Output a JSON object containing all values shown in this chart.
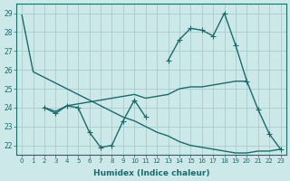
{
  "xlabel": "Humidex (Indice chaleur)",
  "background_color": "#cde8e8",
  "grid_color": "#a0c8c8",
  "line_color": "#1a6b6b",
  "xlim": [
    -0.5,
    23.5
  ],
  "ylim": [
    21.5,
    29.5
  ],
  "yticks": [
    22,
    23,
    24,
    25,
    26,
    27,
    28,
    29
  ],
  "xticks": [
    0,
    1,
    2,
    3,
    4,
    5,
    6,
    7,
    8,
    9,
    10,
    11,
    12,
    13,
    14,
    15,
    16,
    17,
    18,
    19,
    20,
    21,
    22,
    23
  ],
  "lineA_x": [
    0,
    1,
    2,
    3,
    4,
    5,
    6,
    7,
    8,
    9,
    10,
    11,
    12,
    13,
    14,
    15,
    16,
    17,
    18,
    19,
    20,
    21,
    22,
    23
  ],
  "lineA_y": [
    28.9,
    25.9,
    25.6,
    25.3,
    25.0,
    24.7,
    24.4,
    24.1,
    23.8,
    23.5,
    23.3,
    23.0,
    22.7,
    22.5,
    22.2,
    22.0,
    21.9,
    21.8,
    21.7,
    21.6,
    21.6,
    21.7,
    21.7,
    21.8
  ],
  "lineB_x": [
    2,
    3,
    4,
    10,
    11,
    12,
    13,
    14,
    15,
    16,
    17,
    18,
    19,
    20
  ],
  "lineB_y": [
    24.0,
    23.8,
    24.1,
    24.7,
    24.5,
    24.6,
    24.7,
    25.0,
    25.1,
    25.1,
    25.2,
    25.3,
    25.4,
    25.4
  ],
  "lineC_x": [
    2,
    3,
    4,
    5,
    6,
    7,
    8,
    9,
    10,
    11
  ],
  "lineC_y": [
    24.0,
    23.7,
    24.1,
    24.0,
    22.7,
    21.9,
    22.0,
    23.3,
    24.4,
    23.5
  ],
  "lineD_x": [
    13,
    14,
    15,
    16,
    17,
    18,
    19,
    20,
    21,
    22,
    23
  ],
  "lineD_y": [
    26.5,
    27.6,
    28.2,
    28.1,
    27.8,
    29.0,
    27.3,
    25.4,
    23.9,
    22.6,
    21.8
  ]
}
